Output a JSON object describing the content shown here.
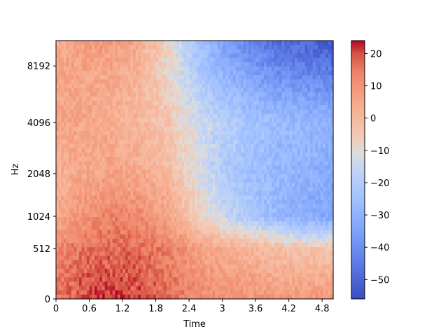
{
  "chart_data": {
    "type": "heatmap",
    "title": "",
    "xlabel": "Time",
    "ylabel": "Hz",
    "x_ticks": [
      "0",
      "0.6",
      "1.2",
      "1.8",
      "2.4",
      "3",
      "3.6",
      "4.2",
      "4.8"
    ],
    "x_tick_values": [
      0,
      0.6,
      1.2,
      1.8,
      2.4,
      3.0,
      3.6,
      4.2,
      4.8
    ],
    "y_ticks": [
      "0",
      "512",
      "1024",
      "2048",
      "4096",
      "8192"
    ],
    "y_tick_values": [
      0,
      512,
      1024,
      2048,
      4096,
      8192
    ],
    "y_scale": "mel",
    "xlim": [
      0,
      5.0
    ],
    "ylim": [
      0,
      11025
    ],
    "colormap": "coolwarm",
    "colorbar": {
      "ticks": [
        "20",
        "10",
        "0",
        "−10",
        "−20",
        "−30",
        "−40",
        "−50"
      ],
      "tick_values": [
        20,
        10,
        0,
        -10,
        -20,
        -30,
        -40,
        -50
      ],
      "range": [
        -56,
        24
      ]
    },
    "time_bins": [
      0,
      0.5,
      1,
      1.5,
      2,
      2.5,
      3,
      3.5,
      4,
      4.5,
      5
    ],
    "freq_bins_hz": [
      0,
      512,
      1024,
      2048,
      4096,
      8192,
      11025
    ],
    "values_db": [
      [
        16,
        20,
        21,
        20,
        17,
        13,
        11,
        10,
        9,
        9,
        9
      ],
      [
        12,
        16,
        17,
        17,
        14,
        8,
        3,
        1,
        -2,
        -3,
        -5
      ],
      [
        4,
        10,
        13,
        12,
        6,
        -5,
        -15,
        -22,
        -28,
        -32,
        -33
      ],
      [
        2,
        5,
        6,
        5,
        0,
        -10,
        -20,
        -25,
        -28,
        -30,
        -32
      ],
      [
        6,
        5,
        3,
        0,
        -4,
        -12,
        -19,
        -23,
        -26,
        -28,
        -30
      ],
      [
        5,
        6,
        5,
        2,
        -8,
        -20,
        -30,
        -37,
        -42,
        -44,
        -46
      ],
      [
        2,
        8,
        9,
        4,
        -8,
        -22,
        -35,
        -43,
        -48,
        -50,
        -52
      ]
    ]
  }
}
